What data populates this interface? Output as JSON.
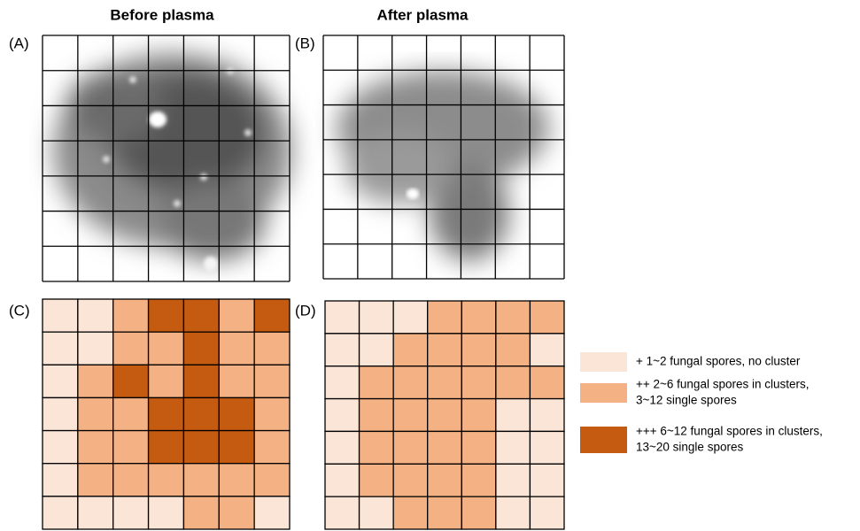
{
  "titles": [
    "Before plasma",
    "After plasma"
  ],
  "panels": [
    "(A)",
    "(B)",
    "(C)",
    "(D)"
  ],
  "heatmaps": [
    [
      [
        1,
        1,
        2,
        3,
        3,
        2,
        3
      ],
      [
        1,
        1,
        2,
        2,
        3,
        2,
        2
      ],
      [
        1,
        2,
        3,
        2,
        3,
        2,
        2
      ],
      [
        1,
        2,
        2,
        3,
        3,
        3,
        2
      ],
      [
        1,
        2,
        2,
        3,
        3,
        3,
        2
      ],
      [
        1,
        2,
        2,
        2,
        2,
        2,
        2
      ],
      [
        1,
        1,
        1,
        1,
        2,
        2,
        1
      ]
    ],
    [
      [
        1,
        1,
        1,
        2,
        2,
        2,
        2
      ],
      [
        1,
        1,
        2,
        2,
        2,
        2,
        1
      ],
      [
        1,
        2,
        2,
        2,
        2,
        2,
        2
      ],
      [
        1,
        2,
        2,
        2,
        2,
        1,
        1
      ],
      [
        1,
        2,
        2,
        2,
        2,
        1,
        1
      ],
      [
        1,
        2,
        2,
        2,
        2,
        1,
        1
      ],
      [
        1,
        1,
        2,
        2,
        2,
        1,
        1
      ]
    ]
  ],
  "legend": [
    {
      "color": "#fbe5d6",
      "lines": [
        "+ 1~2 fungal spores, no cluster"
      ]
    },
    {
      "color": "#f4b183",
      "lines": [
        "++ 2~6 fungal spores in clusters,",
        "3~12 single spores"
      ]
    },
    {
      "color": "#c55a11",
      "lines": [
        "+++ 6~12 fungal spores in clusters,",
        "13~20 single spores"
      ]
    }
  ]
}
